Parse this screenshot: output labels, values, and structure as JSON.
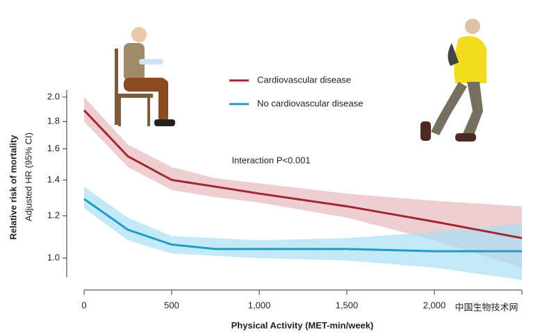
{
  "chart_data": {
    "type": "line",
    "y_label": "Relative risk of mortality",
    "y_sublabel": "Adjusted HR (95% CI)",
    "x_label": "Physical Activity (MET-min/week)",
    "annotation": "Interaction P<0.001",
    "watermark": "中国生物技术网",
    "x": [
      0,
      250,
      500,
      750,
      1000,
      1500,
      2000,
      2500
    ],
    "series": [
      {
        "name": "Cardiovascular disease",
        "color": "#a3262e",
        "band_color": "#e8b9bf",
        "values": [
          1.89,
          1.55,
          1.4,
          1.36,
          1.32,
          1.25,
          1.17,
          1.09
        ],
        "ci_lower": [
          1.8,
          1.48,
          1.34,
          1.3,
          1.27,
          1.19,
          1.08,
          0.96
        ],
        "ci_upper": [
          2.0,
          1.63,
          1.48,
          1.41,
          1.38,
          1.32,
          1.28,
          1.25
        ]
      },
      {
        "name": "No cardiovascular disease",
        "color": "#1e9cc8",
        "band_color": "#a9def2",
        "values": [
          1.29,
          1.13,
          1.06,
          1.04,
          1.04,
          1.04,
          1.03,
          1.03
        ],
        "ci_lower": [
          1.24,
          1.08,
          1.02,
          1.01,
          1.0,
          0.99,
          0.96,
          0.91
        ],
        "ci_upper": [
          1.36,
          1.19,
          1.1,
          1.09,
          1.08,
          1.09,
          1.12,
          1.16
        ]
      }
    ],
    "xlim": [
      0,
      2500
    ],
    "xticks": [
      0,
      {
        "value": 500,
        "label": "500"
      },
      {
        "value": 1000,
        "label": "1,000"
      },
      {
        "value": 1500,
        "label": "1,500"
      },
      {
        "value": 2000,
        "label": "2,000"
      }
    ],
    "ylim": [
      0.92,
      2.06
    ],
    "yscale": "log",
    "yticks": [
      {
        "value": 1,
        "label": "1.0"
      },
      {
        "value": 1.2,
        "label": "1.2"
      },
      {
        "value": 1.4,
        "label": "1.4"
      },
      {
        "value": 1.6,
        "label": "1.6"
      },
      {
        "value": 1.8,
        "label": "1.8"
      },
      {
        "value": 2,
        "label": "2.0"
      }
    ]
  }
}
